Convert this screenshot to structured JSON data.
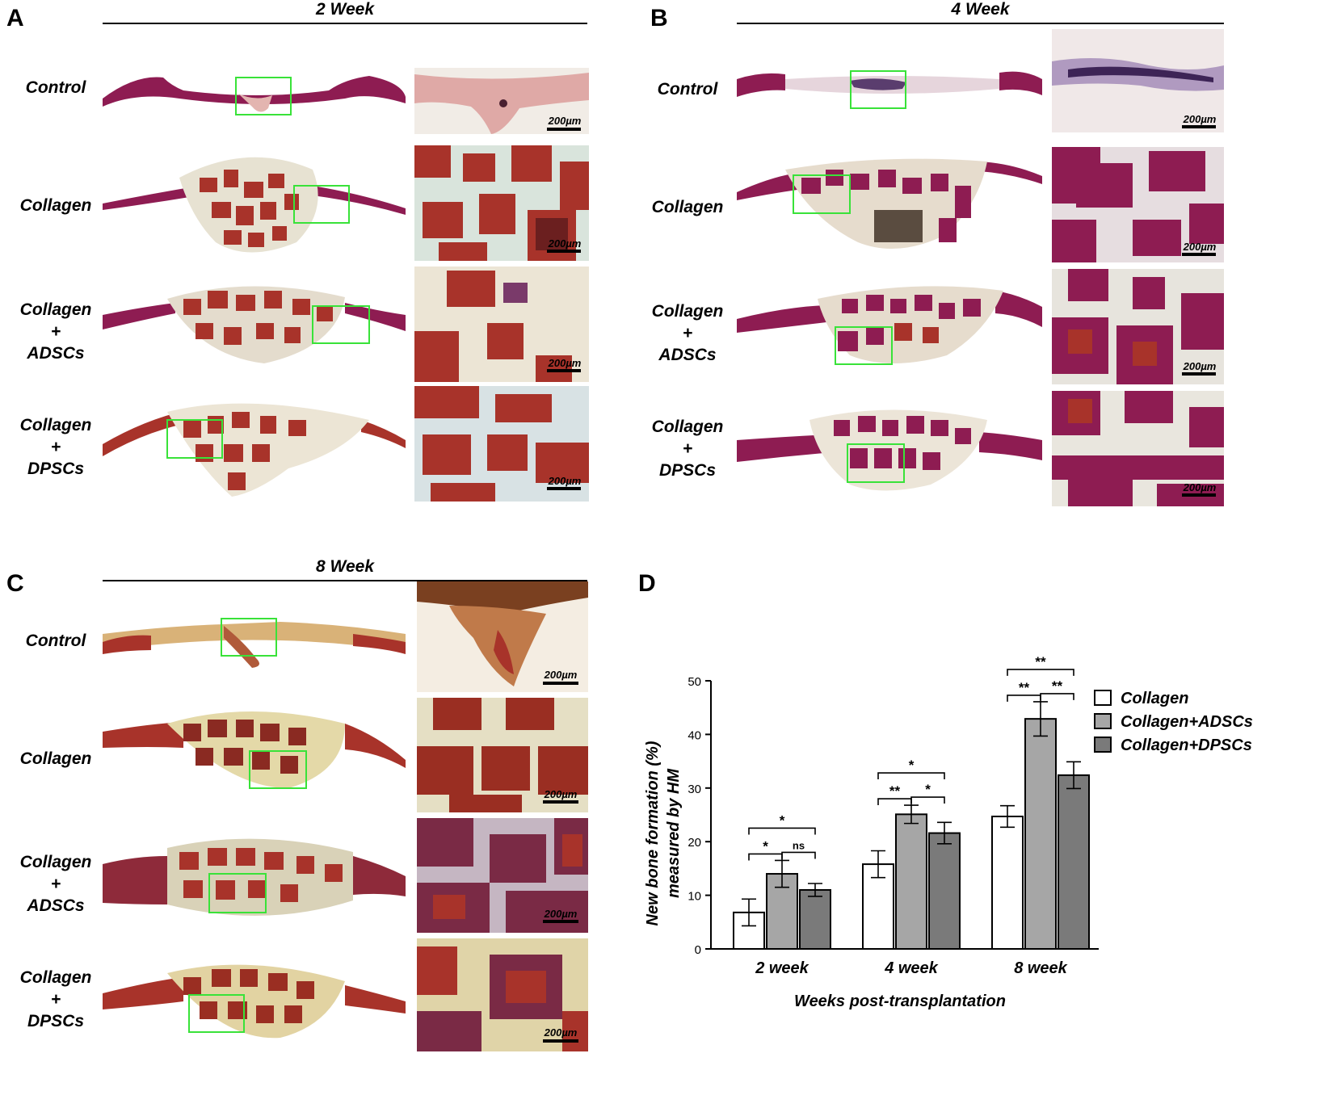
{
  "panels": {
    "A": {
      "letter": "A",
      "title": "2 Week"
    },
    "B": {
      "letter": "B",
      "title": "4 Week"
    },
    "C": {
      "letter": "C",
      "title": "8 Week"
    },
    "D": {
      "letter": "D"
    }
  },
  "row_labels": {
    "control": "Control",
    "collagen": "Collagen",
    "collagen_adscs": [
      "Collagen",
      "+",
      "ADSCs"
    ],
    "collagen_dpscs": [
      "Collagen",
      "+",
      "DPSCs"
    ]
  },
  "scale_label": "200µm",
  "colors": {
    "stain_red": "#a8332a",
    "stain_magenta": "#8e1c52",
    "background_tissue": "#e9d8c8",
    "roi_box": "#39e239",
    "bar_collagen": "#ffffff",
    "bar_adscs": "#a6a6a6",
    "bar_dpscs": "#7a7a7a"
  },
  "chart_data": {
    "type": "bar",
    "categories": [
      "2 week",
      "4 week",
      "8 week"
    ],
    "series": [
      {
        "name": "Collagen",
        "values": [
          6.8,
          15.8,
          24.7
        ],
        "errors": [
          2.5,
          2.5,
          2.0
        ],
        "color": "#ffffff"
      },
      {
        "name": "Collagen+ADSCs",
        "values": [
          14.0,
          25.1,
          42.9
        ],
        "errors": [
          2.5,
          1.7,
          3.2
        ],
        "color": "#a6a6a6"
      },
      {
        "name": "Collagen+DPSCs",
        "values": [
          11.0,
          21.6,
          32.4
        ],
        "errors": [
          1.2,
          2.0,
          2.5
        ],
        "color": "#7a7a7a"
      }
    ],
    "xlabel": "Weeks post-transplantation",
    "ylabel_lines": [
      "New bone formation (%)",
      "measured by HM"
    ],
    "ylim": [
      0,
      50
    ],
    "yticks": [
      0,
      10,
      20,
      30,
      40,
      50
    ],
    "legend_position": "right",
    "significance": [
      {
        "group": 0,
        "from": 0,
        "to": 1,
        "label": "*"
      },
      {
        "group": 0,
        "from": 1,
        "to": 2,
        "label": "ns"
      },
      {
        "group": 0,
        "from": 0,
        "to": 2,
        "label": "*"
      },
      {
        "group": 1,
        "from": 0,
        "to": 1,
        "label": "**"
      },
      {
        "group": 1,
        "from": 1,
        "to": 2,
        "label": "*"
      },
      {
        "group": 1,
        "from": 0,
        "to": 2,
        "label": "*"
      },
      {
        "group": 2,
        "from": 0,
        "to": 1,
        "label": "**"
      },
      {
        "group": 2,
        "from": 1,
        "to": 2,
        "label": "**"
      },
      {
        "group": 2,
        "from": 0,
        "to": 2,
        "label": "**"
      }
    ]
  }
}
